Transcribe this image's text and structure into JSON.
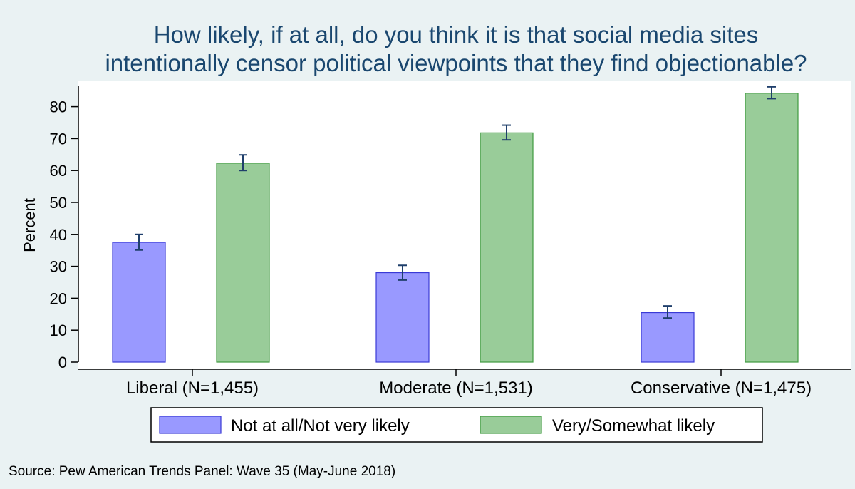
{
  "chart_data": {
    "type": "bar",
    "title_lines": [
      "How likely, if at all, do you think it is that social media sites",
      "intentionally censor political viewpoints that they find objectionable?"
    ],
    "ylabel": "Percent",
    "xlabel": "",
    "ylim": [
      0,
      87
    ],
    "yticks": [
      0,
      10,
      20,
      30,
      40,
      50,
      60,
      70,
      80
    ],
    "grid": false,
    "categories": [
      "Liberal (N=1,455)",
      "Moderate (N=1,531)",
      "Conservative (N=1,475)"
    ],
    "series": [
      {
        "name": "Not at all/Not very likely",
        "color": "#9999ff",
        "stroke": "#3a3ad6",
        "values": [
          37.5,
          28,
          15.5
        ],
        "error_low": [
          35.1,
          25.7,
          13.8
        ],
        "error_high": [
          40.0,
          30.3,
          17.6
        ]
      },
      {
        "name": "Very/Somewhat likely",
        "color": "#99cc99",
        "stroke": "#3f9a3f",
        "values": [
          62.3,
          71.8,
          84.2
        ],
        "error_low": [
          60.0,
          69.6,
          82.5
        ],
        "error_high": [
          64.9,
          74.2,
          86.2
        ]
      }
    ],
    "legend_position": "bottom",
    "source_note": "Source: Pew American Trends Panel: Wave 35 (May-June 2018)"
  }
}
